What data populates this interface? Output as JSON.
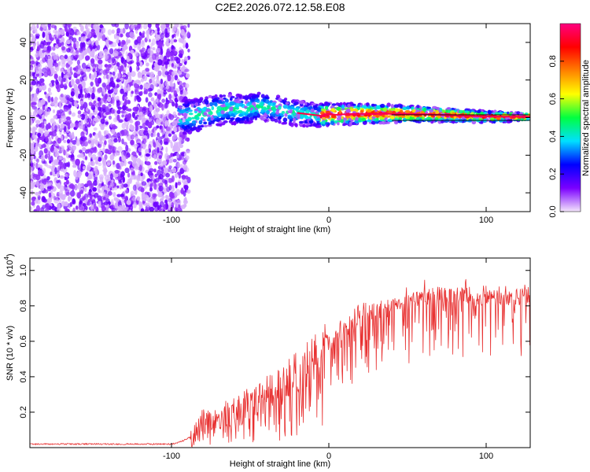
{
  "chart_data": [
    {
      "type": "heatmap",
      "title": "C2E2.2026.072.12.58.E08",
      "xlabel": "Height of straight line (km)",
      "ylabel": "Frequency (Hz)",
      "xlim": [
        -190,
        128
      ],
      "ylim": [
        -50,
        50
      ],
      "xticks": [
        -100,
        0,
        100
      ],
      "xtick_labels": [
        "-100",
        "0",
        "100"
      ],
      "yticks": [
        -40,
        -20,
        0,
        20,
        40
      ],
      "ytick_labels": [
        "-40",
        "-20",
        "0",
        "20",
        "40"
      ],
      "colorbar": {
        "label": "Normalized spectral amplitude",
        "range": [
          0,
          1
        ],
        "ticks": [
          0.0,
          0.2,
          0.4,
          0.6,
          0.8
        ],
        "tick_labels": [
          "0.0",
          "0.2",
          "0.4",
          "0.6",
          "0.8"
        ],
        "colors": [
          "#f4e6fb",
          "#7b00ff",
          "#0000ff",
          "#00e0ff",
          "#00ff40",
          "#ffff00",
          "#ff8000",
          "#ff0000",
          "#ff0080"
        ]
      },
      "noise_region_km": [
        -190,
        -95
      ],
      "signal_ridge": {
        "x": [
          -95,
          -85,
          -75,
          -65,
          -55,
          -45,
          -35,
          -25,
          -15,
          -5,
          0,
          5,
          15,
          25,
          40,
          55,
          70,
          85,
          100,
          115,
          128
        ],
        "y": [
          0,
          1,
          3,
          5,
          4,
          6,
          5,
          3,
          2,
          1,
          2,
          1.5,
          2,
          2,
          2,
          2,
          1.5,
          1,
          0.5,
          0.5,
          0.5
        ]
      }
    },
    {
      "type": "line",
      "xlabel": "Height of straight line (km)",
      "ylabel": "SNR (10 * v/v)",
      "multiplier_label": "(x10",
      "multiplier_exp": "4",
      "multiplier_close": ")",
      "xlim": [
        -190,
        128
      ],
      "ylim": [
        0,
        1.07
      ],
      "xticks": [
        -100,
        0,
        100
      ],
      "xtick_labels": [
        "-100",
        "0",
        "100"
      ],
      "yticks": [
        0.2,
        0.4,
        0.6,
        0.8,
        1.0
      ],
      "ytick_labels": [
        "0.2",
        "0.4",
        "0.6",
        "0.8",
        "1.0"
      ],
      "color": "#e83030",
      "series": [
        {
          "name": "SNR",
          "x": [
            -190,
            -150,
            -100,
            -95,
            -90,
            -85,
            -80,
            -70,
            -60,
            -50,
            -40,
            -30,
            -20,
            -10,
            0,
            10,
            20,
            30,
            40,
            50,
            60,
            70,
            80,
            90,
            100,
            110,
            120,
            128
          ],
          "y": [
            0.02,
            0.02,
            0.02,
            0.03,
            0.05,
            0.08,
            0.12,
            0.17,
            0.2,
            0.24,
            0.3,
            0.35,
            0.42,
            0.5,
            0.58,
            0.66,
            0.73,
            0.78,
            0.8,
            0.82,
            0.85,
            0.87,
            0.86,
            0.85,
            0.85,
            0.84,
            0.85,
            0.86
          ]
        }
      ]
    }
  ]
}
